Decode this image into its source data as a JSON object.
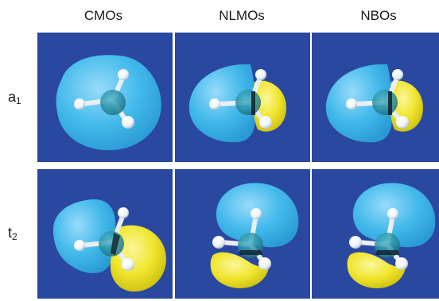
{
  "columns": [
    "CMOs",
    "NLMOs",
    "NBOs"
  ],
  "rows": [
    {
      "symbol": "a",
      "subscript": "1"
    },
    {
      "symbol": "t",
      "subscript": "2"
    }
  ],
  "colors": {
    "background": "#2a48a0",
    "positive_lobe": "#45c0ef",
    "negative_lobe": "#f0e52c",
    "carbon": "#2a8fa4",
    "hydrogen": "#f4f8fb"
  }
}
